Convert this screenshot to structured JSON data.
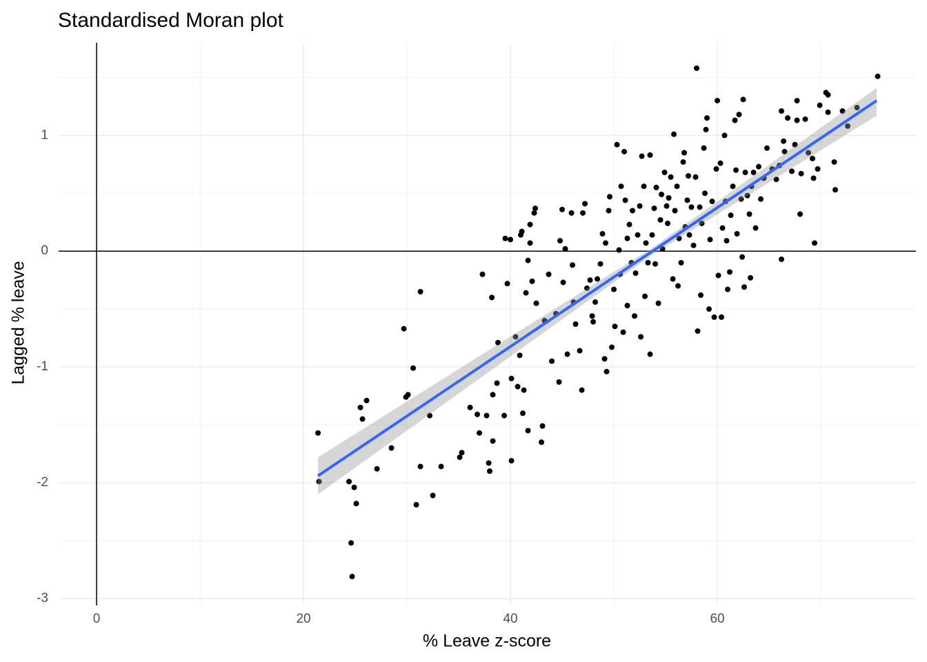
{
  "chart_data": {
    "type": "scatter",
    "title": "Standardised Moran plot",
    "xlabel": "% Leave z-score",
    "ylabel": "Lagged % leave",
    "xlim": [
      -3.67,
      79.2
    ],
    "ylim": [
      -3.06,
      1.8
    ],
    "xticks": [
      0,
      20,
      40,
      60
    ],
    "yticks": [
      -3,
      -2,
      -1,
      0,
      1
    ],
    "xminorticks": [
      10,
      30,
      50,
      70
    ],
    "yminorticks": [
      -2.5,
      -1.5,
      -0.5,
      0.5,
      1.5
    ],
    "grid": true,
    "hline": 0,
    "vline": 0,
    "color": "#000000",
    "x": [
      21.4,
      21.5,
      24.4,
      24.9,
      25.1,
      24.6,
      24.7,
      25.5,
      25.7,
      26.1,
      27.1,
      28.5,
      29.7,
      29.9,
      30.1,
      30.6,
      30.9,
      31.3,
      31.3,
      32.2,
      32.5,
      33.3,
      35.1,
      35.3,
      36.1,
      36.8,
      37.0,
      37.3,
      37.7,
      37.9,
      38.0,
      38.2,
      38.3,
      38.3,
      38.7,
      38.8,
      39.4,
      39.5,
      39.7,
      40.0,
      40.1,
      40.1,
      40.5,
      40.7,
      40.9,
      41.0,
      41.1,
      41.2,
      41.3,
      41.5,
      41.7,
      41.7,
      41.9,
      41.9,
      42.1,
      42.3,
      42.4,
      42.5,
      43.0,
      43.1,
      43.3,
      43.7,
      44.0,
      44.4,
      44.7,
      44.8,
      45.0,
      45.1,
      45.3,
      45.5,
      45.9,
      46.0,
      46.1,
      46.3,
      46.7,
      46.9,
      47.0,
      47.2,
      47.4,
      47.7,
      47.9,
      48.0,
      48.2,
      48.4,
      48.7,
      48.9,
      49.1,
      49.2,
      49.3,
      49.5,
      49.6,
      49.8,
      50.0,
      50.1,
      50.3,
      50.5,
      50.6,
      50.7,
      50.9,
      51.0,
      51.1,
      51.3,
      51.3,
      51.5,
      51.7,
      51.8,
      52.0,
      52.1,
      52.3,
      52.5,
      52.6,
      52.7,
      52.9,
      53.0,
      53.1,
      53.3,
      53.5,
      53.5,
      53.7,
      53.9,
      54.0,
      54.1,
      54.3,
      54.5,
      54.6,
      54.7,
      54.9,
      55.1,
      55.2,
      55.3,
      55.5,
      55.7,
      55.8,
      55.9,
      56.1,
      56.2,
      56.3,
      56.5,
      56.7,
      56.8,
      56.9,
      57.1,
      57.2,
      57.3,
      57.5,
      57.7,
      57.9,
      58.0,
      58.1,
      58.3,
      58.4,
      58.5,
      58.7,
      58.8,
      58.9,
      59.0,
      59.2,
      59.3,
      59.5,
      59.7,
      59.9,
      60.0,
      60.1,
      60.3,
      60.4,
      60.5,
      60.7,
      60.8,
      60.9,
      61.0,
      61.2,
      61.3,
      61.5,
      61.7,
      61.8,
      61.9,
      62.1,
      62.3,
      62.4,
      62.5,
      62.6,
      62.7,
      62.9,
      63.1,
      63.2,
      63.3,
      63.5,
      63.7,
      64.0,
      64.2,
      64.5,
      64.8,
      65.3,
      65.7,
      66.0,
      66.2,
      66.2,
      66.4,
      66.5,
      66.8,
      67.2,
      67.5,
      67.7,
      67.7,
      68.0,
      68.1,
      68.5,
      68.8,
      69.2,
      69.3,
      69.4,
      69.7,
      69.9,
      70.5,
      70.7,
      70.7,
      71.3,
      71.4,
      72.1,
      72.6,
      73.5,
      75.5
    ],
    "values": [
      -1.57,
      -1.99,
      -1.99,
      -2.04,
      -2.18,
      -2.52,
      -2.81,
      -1.35,
      -1.45,
      -1.29,
      -1.88,
      -1.7,
      -0.67,
      -1.26,
      -1.24,
      -1.01,
      -2.19,
      -1.86,
      -0.35,
      -1.42,
      -2.11,
      -1.86,
      -1.78,
      -1.74,
      -1.35,
      -1.41,
      -1.57,
      -0.2,
      -1.42,
      -1.83,
      -1.9,
      -0.4,
      -1.24,
      -1.64,
      -1.14,
      -0.79,
      -1.42,
      0.11,
      -0.28,
      0.1,
      -1.81,
      -1.1,
      -0.74,
      -1.17,
      -0.9,
      0.14,
      0.17,
      -1.4,
      -1.2,
      -0.36,
      -1.55,
      -0.08,
      0.23,
      0.07,
      -0.26,
      0.33,
      0.37,
      -0.45,
      -1.65,
      -1.51,
      -0.6,
      -0.2,
      -0.95,
      -0.54,
      -1.13,
      0.09,
      0.36,
      -0.27,
      0.02,
      -0.89,
      0.33,
      -0.12,
      -0.44,
      -0.63,
      -0.86,
      -1.2,
      0.33,
      0.41,
      -0.32,
      -0.25,
      -0.56,
      -0.61,
      -0.44,
      -0.24,
      -0.11,
      0.15,
      -0.93,
      0.07,
      -1.04,
      0.35,
      0.47,
      -0.83,
      -0.33,
      -0.65,
      0.92,
      0.01,
      -0.2,
      0.56,
      -0.7,
      0.86,
      0.44,
      0.11,
      -0.47,
      0.23,
      -0.1,
      0.35,
      -0.56,
      -0.19,
      0.14,
      0.39,
      -0.74,
      0.82,
      0.56,
      -0.39,
      0.07,
      -0.1,
      0.83,
      -0.89,
      0.14,
      0.37,
      -0.11,
      0.55,
      -0.45,
      0.27,
      0.49,
      0.02,
      0.68,
      0.39,
      0.24,
      0.46,
      0.64,
      -0.24,
      1.01,
      0.35,
      0.56,
      -0.3,
      0.11,
      -0.1,
      0.77,
      0.85,
      0.21,
      0.44,
      0.65,
      0.14,
      0.38,
      0.05,
      0.64,
      1.58,
      -0.69,
      0.38,
      -0.38,
      0.24,
      0.89,
      0.5,
      1.05,
      1.15,
      -0.5,
      0.1,
      0.43,
      -0.57,
      0.71,
      1.3,
      -0.21,
      0.76,
      -0.57,
      0.2,
      1.0,
      0.43,
      0.09,
      -0.33,
      -0.18,
      0.31,
      0.56,
      1.13,
      0.7,
      0.15,
      1.18,
      0.45,
      -0.05,
      1.31,
      -0.31,
      0.68,
      0.48,
      0.32,
      -0.23,
      0.56,
      0.68,
      0.2,
      0.73,
      0.45,
      0.63,
      0.89,
      0.71,
      0.62,
      0.74,
      1.21,
      -0.07,
      0.95,
      0.86,
      1.15,
      0.69,
      0.92,
      1.3,
      1.13,
      0.32,
      0.67,
      1.14,
      0.85,
      0.8,
      0.63,
      0.07,
      0.71,
      1.26,
      1.37,
      1.35,
      1.2,
      0.77,
      0.53,
      1.21,
      1.08,
      1.24,
      1.51
    ],
    "fit": {
      "color": "#3366ff",
      "band_color": "#999999",
      "x": [
        21.4,
        53.9,
        75.4
      ],
      "values": [
        -1.94,
        0.01,
        1.3
      ],
      "lower": [
        -2.1,
        -0.02,
        1.17
      ],
      "upper": [
        -1.78,
        0.04,
        1.41
      ]
    }
  }
}
